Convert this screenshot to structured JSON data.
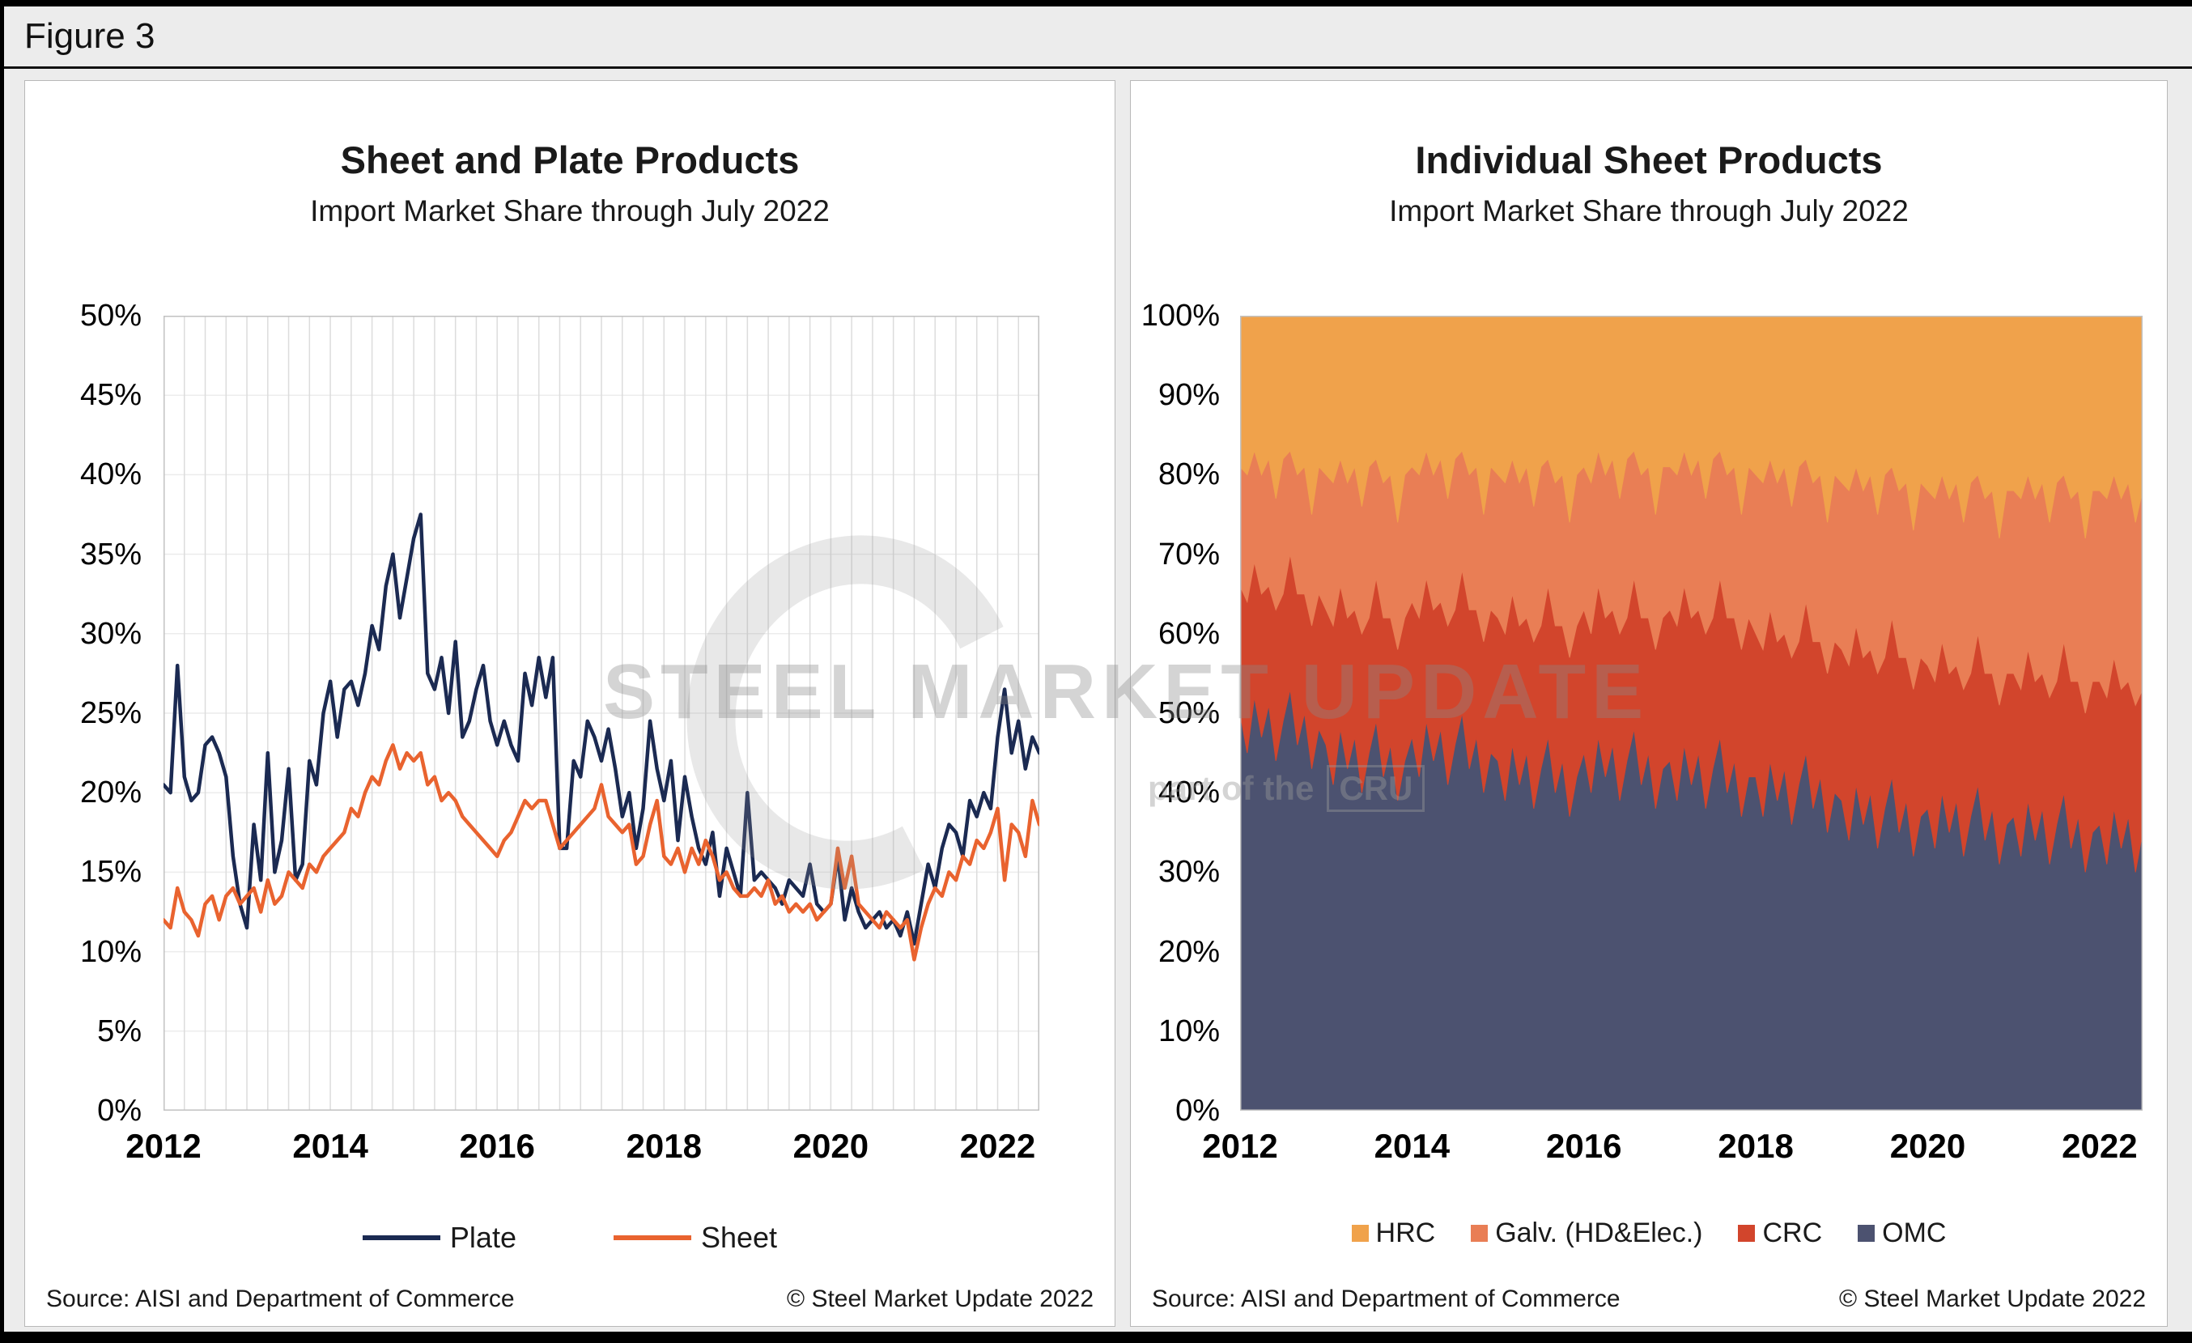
{
  "figure": {
    "label": "Figure 3"
  },
  "left_chart": {
    "title": "Sheet and Plate Products",
    "subtitle": "Import Market Share through July 2022",
    "source": "Source: AISI and Department of Commerce",
    "copyright": "© Steel Market Update 2022",
    "legend": [
      {
        "label": "Plate",
        "color": "#1B2A52"
      },
      {
        "label": "Sheet",
        "color": "#E9632F"
      }
    ]
  },
  "right_chart": {
    "title": "Individual Sheet Products",
    "subtitle": "Import Market Share through July 2022",
    "source": "Source: AISI and Department of Commerce",
    "copyright": "© Steel Market Update 2022",
    "legend": [
      {
        "label": "HRC",
        "color": "#F0A24B"
      },
      {
        "label": "Galv. (HD&Elec.)",
        "color": "#E97E55"
      },
      {
        "label": "CRC",
        "color": "#D2452C"
      },
      {
        "label": "OMC",
        "color": "#4C5270"
      }
    ]
  },
  "watermark": {
    "text": "STEEL MARKET UPDATE",
    "tagline_prefix": "part of the",
    "tagline_brand": "CRU"
  },
  "chart_data": [
    {
      "type": "line",
      "title": "Sheet and Plate Products",
      "subtitle": "Import Market Share through July 2022",
      "x_start": "2012-01",
      "x_end": "2022-07",
      "frequency": "monthly",
      "ylim": [
        0,
        50
      ],
      "ytick_step": 5,
      "y_tick_labels": [
        "0%",
        "5%",
        "10%",
        "15%",
        "20%",
        "25%",
        "30%",
        "35%",
        "40%",
        "45%",
        "50%"
      ],
      "x_tick_labels": [
        "2012",
        "2014",
        "2016",
        "2018",
        "2020",
        "2022"
      ],
      "x_tick_positions": [
        0,
        24,
        48,
        72,
        96,
        120
      ],
      "grid": "vertical-quarterly",
      "legend_position": "bottom",
      "series": [
        {
          "name": "Plate",
          "color": "#1B2A52",
          "values": [
            20.5,
            20,
            28,
            21,
            19.5,
            20,
            23,
            23.5,
            22.5,
            21,
            16,
            13,
            11.5,
            18,
            14.5,
            22.5,
            15,
            17,
            21.5,
            14.5,
            15.5,
            22,
            20.5,
            25,
            27,
            23.5,
            26.5,
            27,
            25.5,
            27.5,
            30.5,
            29,
            33,
            35,
            31,
            33.5,
            36,
            37.5,
            27.5,
            26.5,
            28.5,
            25,
            29.5,
            23.5,
            24.5,
            26.5,
            28,
            24.5,
            23,
            24.5,
            23,
            22,
            27.5,
            25.5,
            28.5,
            26,
            28.5,
            16.5,
            16.5,
            22,
            21,
            24.5,
            23.5,
            22,
            24,
            21.5,
            18.5,
            20,
            16.5,
            19,
            24.5,
            21.5,
            19.5,
            22,
            17,
            21,
            18.5,
            16.5,
            15.5,
            17.5,
            13.5,
            16.5,
            15,
            13.5,
            20,
            14.5,
            15,
            14.5,
            14,
            13,
            14.5,
            14,
            13.5,
            15.5,
            13,
            12.5,
            13,
            16,
            12,
            14,
            12.5,
            11.5,
            12,
            12.5,
            11.5,
            12,
            11,
            12.5,
            10.5,
            13,
            15.5,
            14,
            16.5,
            18,
            17.5,
            16,
            19.5,
            18.5,
            20,
            19,
            23.5,
            26.5,
            22.5,
            24.5,
            21.5,
            23.5,
            22.5
          ]
        },
        {
          "name": "Sheet",
          "color": "#E9632F",
          "values": [
            12,
            11.5,
            14,
            12.5,
            12,
            11,
            13,
            13.5,
            12,
            13.5,
            14,
            13,
            13.5,
            14,
            12.5,
            14.5,
            13,
            13.5,
            15,
            14.5,
            14,
            15.5,
            15,
            16,
            16.5,
            17,
            17.5,
            19,
            18.5,
            20,
            21,
            20.5,
            22,
            23,
            21.5,
            22.5,
            22,
            22.5,
            20.5,
            21,
            19.5,
            20,
            19.5,
            18.5,
            18,
            17.5,
            17,
            16.5,
            16,
            17,
            17.5,
            18.5,
            19.5,
            19,
            19.5,
            19.5,
            18,
            16.5,
            17,
            17.5,
            18,
            18.5,
            19,
            20.5,
            18.5,
            18,
            17.5,
            18,
            15.5,
            16,
            18,
            19.5,
            16,
            15.5,
            16.5,
            15,
            16.5,
            15.5,
            17,
            16,
            14.5,
            15,
            14,
            13.5,
            13.5,
            14,
            13.5,
            14.5,
            13,
            13.5,
            12.5,
            13,
            12.5,
            13,
            12,
            12.5,
            13,
            16.5,
            14,
            16,
            13,
            12.5,
            12,
            11.5,
            12.5,
            12,
            11.5,
            12,
            9.5,
            11.5,
            13,
            14,
            13.5,
            15,
            14.5,
            16,
            15.5,
            17,
            16.5,
            17.5,
            19,
            14.5,
            18,
            17.5,
            16,
            19.5,
            18
          ]
        }
      ]
    },
    {
      "type": "area",
      "stacked": true,
      "title": "Individual Sheet Products",
      "subtitle": "Import Market Share through July 2022",
      "x_start": "2012-01",
      "x_end": "2022-07",
      "frequency": "monthly",
      "ylim": [
        0,
        100
      ],
      "ytick_step": 10,
      "y_tick_labels": [
        "0%",
        "10%",
        "20%",
        "30%",
        "40%",
        "50%",
        "60%",
        "70%",
        "80%",
        "90%",
        "100%"
      ],
      "x_tick_labels": [
        "2012",
        "2014",
        "2016",
        "2018",
        "2020",
        "2022"
      ],
      "x_tick_positions": [
        0,
        24,
        48,
        72,
        96,
        120
      ],
      "legend_position": "bottom",
      "series": [
        {
          "name": "OMC",
          "color": "#4C5270",
          "values": [
            50,
            45,
            52,
            47,
            51,
            44,
            49,
            53,
            46,
            50,
            43,
            48,
            46,
            41,
            48,
            43,
            47,
            40,
            45,
            49,
            42,
            46,
            39,
            44,
            47,
            42,
            49,
            44,
            48,
            41,
            46,
            50,
            43,
            47,
            40,
            45,
            44,
            39,
            46,
            41,
            45,
            38,
            43,
            47,
            40,
            44,
            37,
            42,
            45,
            40,
            47,
            42,
            46,
            39,
            44,
            48,
            41,
            45,
            38,
            43,
            44,
            39,
            46,
            41,
            45,
            38,
            43,
            47,
            40,
            44,
            37,
            42,
            42,
            37,
            44,
            39,
            43,
            36,
            41,
            45,
            38,
            42,
            35,
            40,
            39,
            34,
            41,
            36,
            40,
            33,
            38,
            42,
            35,
            39,
            32,
            37,
            38,
            33,
            40,
            35,
            39,
            32,
            37,
            41,
            34,
            38,
            31,
            36,
            37,
            32,
            39,
            34,
            38,
            31,
            36,
            40,
            33,
            37,
            30,
            35,
            36,
            31,
            38,
            33,
            37,
            30,
            35
          ]
        },
        {
          "name": "CRC",
          "color": "#D2452C",
          "values": [
            16,
            19,
            17,
            18,
            15,
            19,
            16,
            17,
            19,
            15,
            18,
            17,
            17,
            20,
            18,
            19,
            16,
            20,
            17,
            18,
            20,
            16,
            19,
            18,
            17,
            20,
            18,
            19,
            16,
            20,
            17,
            18,
            20,
            16,
            19,
            18,
            18,
            21,
            19,
            20,
            17,
            21,
            18,
            19,
            21,
            17,
            20,
            19,
            18,
            20,
            19,
            20,
            17,
            21,
            18,
            19,
            21,
            17,
            20,
            19,
            19,
            22,
            20,
            21,
            18,
            22,
            19,
            20,
            22,
            18,
            21,
            20,
            18,
            21,
            19,
            20,
            17,
            21,
            18,
            19,
            21,
            17,
            20,
            19,
            19,
            22,
            20,
            21,
            18,
            22,
            19,
            20,
            22,
            18,
            21,
            20,
            18,
            21,
            19,
            20,
            17,
            21,
            18,
            19,
            21,
            17,
            20,
            19,
            18,
            21,
            19,
            20,
            17,
            21,
            18,
            19,
            21,
            17,
            20,
            19,
            18,
            21,
            19,
            20,
            17,
            21,
            18
          ]
        },
        {
          "name": "Galv. (HD&Elec.)",
          "color": "#E97E55",
          "values": [
            15,
            16,
            14,
            15,
            16,
            14,
            17,
            13,
            15,
            16,
            14,
            16,
            17,
            18,
            16,
            17,
            18,
            16,
            19,
            15,
            17,
            18,
            16,
            18,
            17,
            18,
            16,
            17,
            18,
            16,
            19,
            15,
            17,
            18,
            16,
            18,
            18,
            19,
            17,
            18,
            19,
            17,
            20,
            16,
            18,
            19,
            17,
            19,
            18,
            19,
            17,
            18,
            19,
            17,
            20,
            16,
            18,
            19,
            17,
            19,
            18,
            19,
            17,
            18,
            19,
            17,
            20,
            16,
            18,
            19,
            17,
            19,
            20,
            21,
            19,
            20,
            21,
            19,
            22,
            18,
            20,
            21,
            19,
            21,
            21,
            22,
            20,
            21,
            22,
            20,
            23,
            19,
            21,
            22,
            20,
            22,
            22,
            23,
            21,
            22,
            23,
            21,
            24,
            20,
            22,
            23,
            21,
            23,
            23,
            24,
            22,
            23,
            24,
            22,
            25,
            21,
            23,
            24,
            22,
            24,
            24,
            25,
            23,
            24,
            25,
            23,
            25
          ]
        },
        {
          "name": "HRC",
          "color": "#F0A24B",
          "values": [
            19,
            20,
            17,
            20,
            18,
            23,
            18,
            17,
            20,
            19,
            25,
            19,
            20,
            21,
            18,
            21,
            19,
            24,
            19,
            18,
            21,
            20,
            26,
            20,
            19,
            20,
            17,
            20,
            18,
            23,
            18,
            17,
            20,
            19,
            25,
            19,
            20,
            21,
            18,
            21,
            19,
            24,
            19,
            18,
            21,
            20,
            26,
            20,
            19,
            21,
            17,
            20,
            18,
            23,
            18,
            17,
            20,
            19,
            25,
            19,
            19,
            20,
            17,
            20,
            18,
            23,
            18,
            17,
            20,
            19,
            25,
            19,
            20,
            21,
            18,
            21,
            19,
            24,
            19,
            18,
            21,
            20,
            26,
            20,
            21,
            22,
            19,
            22,
            20,
            25,
            20,
            19,
            22,
            21,
            27,
            21,
            22,
            23,
            20,
            23,
            21,
            26,
            21,
            20,
            23,
            22,
            28,
            22,
            22,
            23,
            20,
            23,
            21,
            26,
            21,
            20,
            23,
            22,
            28,
            22,
            22,
            23,
            20,
            23,
            21,
            26,
            22
          ]
        }
      ]
    }
  ]
}
